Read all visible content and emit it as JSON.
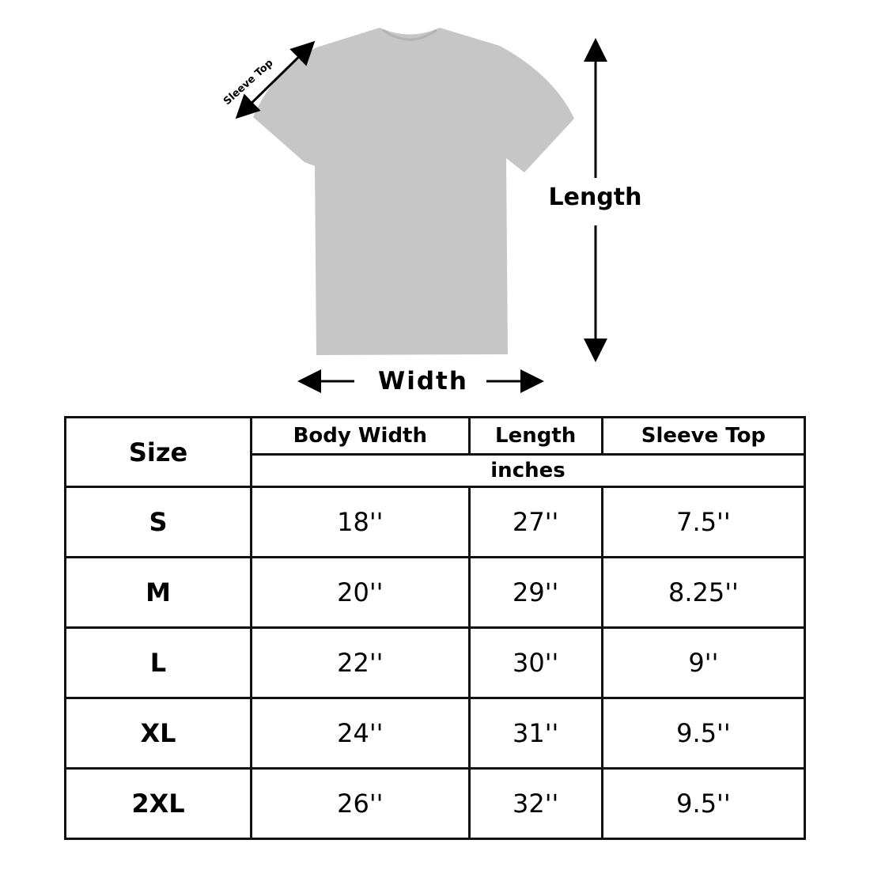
{
  "diagram": {
    "garment": "t-shirt",
    "garment_color": "#c4c4c4",
    "labels": {
      "sleeve_top": "Sleeve Top",
      "length": "Length",
      "width": "Width"
    }
  },
  "table": {
    "size_header": "Size",
    "columns": [
      "Body Width",
      "Length",
      "Sleeve Top"
    ],
    "unit": "inches",
    "rows": [
      {
        "size": "S",
        "values": [
          "18''",
          "27''",
          "7.5''"
        ]
      },
      {
        "size": "M",
        "values": [
          "20''",
          "29''",
          "8.25''"
        ]
      },
      {
        "size": "L",
        "values": [
          "22''",
          "30''",
          "9''"
        ]
      },
      {
        "size": "XL",
        "values": [
          "24''",
          "31''",
          "9.5''"
        ]
      },
      {
        "size": "2XL",
        "values": [
          "26''",
          "32''",
          "9.5''"
        ]
      }
    ]
  }
}
